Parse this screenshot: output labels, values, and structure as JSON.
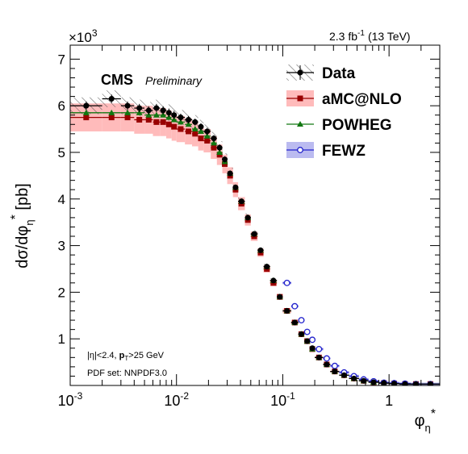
{
  "header": {
    "multiplier_base": "×10",
    "multiplier_exp": "3",
    "lumi_value": "2.3 fb",
    "lumi_exp": "-1",
    "energy": "(13 TeV)"
  },
  "labels": {
    "cms": "CMS",
    "preliminary": "Preliminary",
    "cut_eta": "|η|<2.4, ",
    "cut_pt_p": "p",
    "cut_pt_sub": "T",
    "cut_pt_rest": ">25 GeV",
    "pdf": "PDF set: NNPDF3.0"
  },
  "colors": {
    "data": "#000000",
    "amcatnlo": "#990000",
    "amcatnlo_band": "#ffbbbb",
    "powheg": "#117711",
    "fewz": "#2222cc",
    "fewz_band": "#bbbbf0"
  },
  "chart_data": {
    "type": "scatter",
    "title": "",
    "xlabel": "φ*η",
    "ylabel": "dσ/dφ*η [pb]",
    "xscale": "log",
    "xlim": [
      0.001,
      3.0
    ],
    "ylim": [
      0,
      7.3
    ],
    "yunit_multiplier": 1000,
    "xticks": [
      {
        "value": 0.001,
        "label": "10",
        "exp": "-3"
      },
      {
        "value": 0.01,
        "label": "10",
        "exp": "-2"
      },
      {
        "value": 0.1,
        "label": "10",
        "exp": "-1"
      },
      {
        "value": 1,
        "label": "1",
        "exp": ""
      }
    ],
    "yticks": [
      "1",
      "2",
      "3",
      "4",
      "5",
      "6",
      "7"
    ],
    "legend_position": "top-right",
    "legend": [
      "Data",
      "aMC@NLO",
      "POWHEG",
      "FEWZ"
    ],
    "bins": [
      0.001,
      0.002,
      0.003,
      0.004,
      0.005,
      0.006,
      0.007,
      0.008,
      0.009,
      0.01,
      0.012,
      0.014,
      0.016,
      0.018,
      0.021,
      0.024,
      0.027,
      0.03,
      0.034,
      0.038,
      0.044,
      0.05,
      0.058,
      0.066,
      0.076,
      0.088,
      0.1,
      0.12,
      0.14,
      0.16,
      0.18,
      0.2,
      0.24,
      0.28,
      0.34,
      0.42,
      0.52,
      0.64,
      0.8,
      1.0,
      1.25,
      1.6,
      2.0,
      3.0
    ],
    "series": [
      {
        "name": "Data",
        "values": [
          6.0,
          6.15,
          6.0,
          5.95,
          5.9,
          5.95,
          5.9,
          5.85,
          5.8,
          5.75,
          5.7,
          5.65,
          5.55,
          5.45,
          5.3,
          5.1,
          4.85,
          4.55,
          4.25,
          3.95,
          3.6,
          3.25,
          2.9,
          2.55,
          2.25,
          1.9,
          1.6,
          1.35,
          1.1,
          0.95,
          0.8,
          0.6,
          0.45,
          0.3,
          0.22,
          0.15,
          0.1,
          0.07,
          0.05,
          0.04,
          0.03,
          0.03,
          0.03
        ]
      },
      {
        "name": "aMC@NLO",
        "values": [
          5.75,
          5.75,
          5.75,
          5.7,
          5.7,
          5.65,
          5.65,
          5.6,
          5.55,
          5.5,
          5.45,
          5.4,
          5.3,
          5.25,
          5.1,
          4.95,
          4.75,
          4.5,
          4.2,
          3.9,
          3.55,
          3.2,
          2.85,
          2.5,
          2.2,
          1.9,
          1.6,
          1.35,
          1.1,
          0.95,
          0.78,
          0.6,
          0.45,
          0.3,
          0.22,
          0.15,
          0.1,
          0.07,
          0.05,
          0.04,
          0.03,
          0.03,
          0.03
        ]
      },
      {
        "name": "POWHEG",
        "values": [
          5.85,
          5.85,
          5.85,
          5.85,
          5.8,
          5.8,
          5.8,
          5.75,
          5.7,
          5.65,
          5.6,
          5.5,
          5.45,
          5.35,
          5.2,
          5.0,
          4.8,
          4.55,
          4.25,
          3.95,
          3.6,
          3.25,
          2.9,
          2.55,
          2.25,
          1.9,
          1.6,
          1.35,
          1.1,
          0.95,
          0.78,
          0.6,
          0.45,
          0.3,
          0.22,
          0.15,
          0.1,
          0.07,
          0.05,
          0.04,
          0.03,
          0.03,
          0.03
        ]
      },
      {
        "name": "FEWZ",
        "values": [
          null,
          null,
          null,
          null,
          null,
          null,
          null,
          null,
          null,
          null,
          null,
          null,
          null,
          null,
          null,
          null,
          null,
          null,
          null,
          null,
          null,
          null,
          null,
          null,
          null,
          null,
          2.2,
          1.7,
          1.4,
          1.15,
          0.98,
          0.78,
          0.58,
          0.42,
          0.28,
          0.2,
          0.13,
          0.09,
          0.06,
          0.05,
          0.04,
          0.03,
          0.03
        ]
      }
    ],
    "data_uncertainty": [
      0.18,
      0.18,
      0.18,
      0.18,
      0.18,
      0.18,
      0.18,
      0.18,
      0.18,
      0.16,
      0.16,
      0.15,
      0.15,
      0.15,
      0.14,
      0.14,
      0.13,
      0.12,
      0.11,
      0.1,
      0.09,
      0.08,
      0.07,
      0.06,
      0.05,
      0.05,
      0.04,
      0.03,
      0.03,
      0.02,
      0.02,
      0.02,
      0.01,
      0.01,
      0.01,
      0.01,
      0.01,
      0.01,
      0.01,
      0.01,
      0.01,
      0.01,
      0.01
    ],
    "amcatnlo_band_halfwidth": [
      0.3,
      0.3,
      0.3,
      0.3,
      0.3,
      0.3,
      0.3,
      0.3,
      0.3,
      0.28,
      0.28,
      0.27,
      0.26,
      0.25,
      0.24,
      0.22,
      0.2,
      0.18,
      0.16,
      0.14,
      0.12,
      0.1,
      0.09,
      0.08,
      0.07,
      0.06,
      0.05,
      0.04,
      0.04,
      0.03,
      0.03,
      0.02,
      0.02,
      0.02,
      0.01,
      0.01,
      0.01,
      0.01,
      0.01,
      0.01,
      0.01,
      0.01,
      0.01
    ],
    "fewz_band_halfwidth": 0.03
  }
}
